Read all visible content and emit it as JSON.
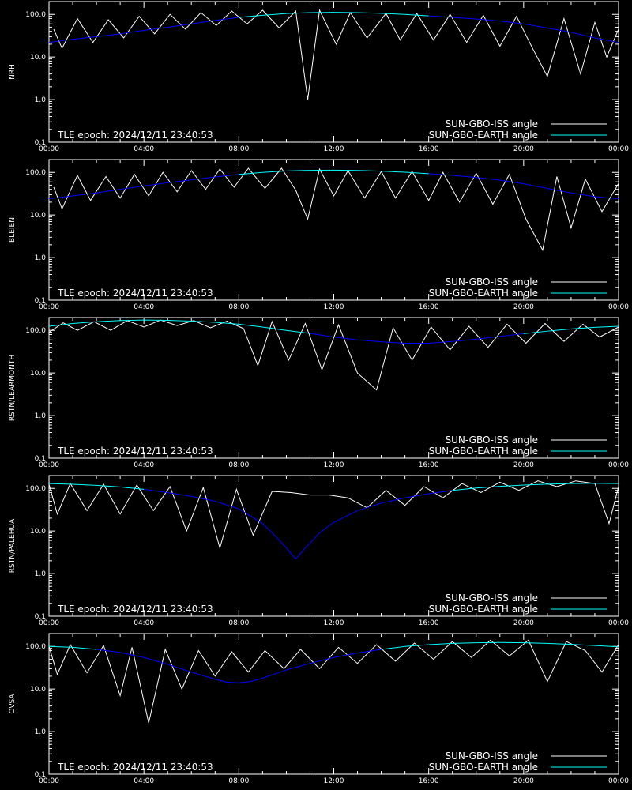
{
  "chart_data": [
    {
      "type": "line",
      "station": "NRH",
      "ylabel": "NRH",
      "epoch_label": "TLE epoch: 2024/12/11 23:40:53",
      "yscale": "log",
      "ylim": [
        0.1,
        200
      ],
      "yticks": [
        "100.0",
        "10.0",
        "1.0",
        "0.1"
      ],
      "xlim_hours": [
        0,
        24
      ],
      "xticks": [
        "00:00",
        "04:00",
        "08:00",
        "12:00",
        "16:00",
        "20:00",
        "00:00"
      ],
      "legend": "bottom-right",
      "series": [
        {
          "name": "SUN-GBO-ISS angle",
          "color": "#ffffff",
          "x_hours": [
            0.2,
            0.55,
            1.2,
            1.85,
            2.5,
            3.15,
            3.8,
            4.45,
            5.1,
            5.75,
            6.4,
            7.05,
            7.7,
            8.35,
            9.0,
            9.7,
            10.4,
            10.9,
            11.4,
            12.1,
            12.7,
            13.4,
            14.2,
            14.8,
            15.5,
            16.2,
            16.9,
            17.6,
            18.3,
            19.0,
            19.7,
            20.4,
            21.0,
            21.7,
            22.4,
            23.0,
            23.5,
            24.0
          ],
          "y": [
            45,
            16,
            80,
            22,
            75,
            28,
            90,
            35,
            100,
            45,
            110,
            55,
            120,
            60,
            125,
            48,
            120,
            1.0,
            125,
            20,
            110,
            28,
            105,
            25,
            105,
            25,
            100,
            22,
            95,
            18,
            90,
            15,
            3.5,
            80,
            4,
            65,
            10,
            45
          ]
        },
        {
          "name": "SUN-GBO-EARTH angle",
          "color": "#00ffff",
          "x_hours": [
            0,
            1,
            2,
            3,
            4,
            5,
            6,
            7,
            8,
            9,
            10,
            11,
            12,
            13,
            14,
            15,
            16,
            17,
            18,
            19,
            20,
            21,
            22,
            23,
            24
          ],
          "y": [
            22,
            26,
            30,
            35,
            42,
            50,
            60,
            72,
            85,
            95,
            105,
            110,
            112,
            110,
            106,
            100,
            92,
            85,
            78,
            70,
            60,
            48,
            38,
            28,
            22
          ],
          "low_color": "#0000ff",
          "high_color": "#00ffff"
        }
      ]
    },
    {
      "type": "line",
      "station": "BLEIEN",
      "ylabel": "BLEIEN",
      "epoch_label": "TLE epoch: 2024/12/11 23:40:53",
      "yscale": "log",
      "ylim": [
        0.1,
        200
      ],
      "yticks": [
        "100.0",
        "10.0",
        "1.0",
        "0.1"
      ],
      "xlim_hours": [
        0,
        24
      ],
      "xticks": [
        "00:00",
        "04:00",
        "08:00",
        "12:00",
        "16:00",
        "20:00",
        "00:00"
      ],
      "legend": "bottom-right",
      "series": [
        {
          "name": "SUN-GBO-ISS angle",
          "color": "#ffffff",
          "x_hours": [
            0.2,
            0.55,
            1.2,
            1.75,
            2.4,
            3.0,
            3.6,
            4.2,
            4.8,
            5.4,
            6.0,
            6.6,
            7.2,
            7.8,
            8.4,
            9.1,
            9.8,
            10.4,
            10.9,
            11.4,
            12.0,
            12.6,
            13.3,
            14.0,
            14.6,
            15.3,
            16.0,
            16.6,
            17.3,
            18.0,
            18.7,
            19.4,
            20.1,
            20.8,
            21.4,
            22.0,
            22.6,
            23.3,
            24.0
          ],
          "y": [
            45,
            14,
            85,
            22,
            80,
            25,
            90,
            28,
            100,
            35,
            110,
            40,
            120,
            45,
            125,
            42,
            125,
            38,
            8,
            120,
            28,
            110,
            25,
            105,
            25,
            105,
            22,
            100,
            20,
            95,
            18,
            90,
            8,
            1.5,
            80,
            5,
            70,
            12,
            55
          ]
        },
        {
          "name": "SUN-GBO-EARTH angle",
          "color": "#00ffff",
          "x_hours": [
            0,
            1,
            2,
            3,
            4,
            5,
            6,
            7,
            8,
            9,
            10,
            11,
            12,
            13,
            14,
            15,
            16,
            17,
            18,
            19,
            20,
            21,
            22,
            23,
            24
          ],
          "y": [
            24,
            28,
            33,
            40,
            48,
            57,
            67,
            78,
            90,
            100,
            108,
            112,
            113,
            111,
            107,
            101,
            93,
            85,
            76,
            66,
            54,
            42,
            33,
            27,
            24
          ],
          "low_color": "#0000ff",
          "high_color": "#00ffff"
        }
      ]
    },
    {
      "type": "line",
      "station": "RSTN/LEARMONTH",
      "ylabel": "RSTN/LEARMONTH",
      "epoch_label": "TLE epoch: 2024/12/11 23:40:53",
      "yscale": "log",
      "ylim": [
        0.1,
        200
      ],
      "yticks": [
        "100.0",
        "10.0",
        "1.0",
        "0.1"
      ],
      "xlim_hours": [
        0,
        24
      ],
      "xticks": [
        "00:00",
        "04:00",
        "08:00",
        "12:00",
        "16:00",
        "20:00",
        "00:00"
      ],
      "legend": "bottom-right",
      "series": [
        {
          "name": "SUN-GBO-ISS angle",
          "color": "#ffffff",
          "x_hours": [
            0,
            0.6,
            1.2,
            1.9,
            2.6,
            3.3,
            4.0,
            4.7,
            5.4,
            6.1,
            6.8,
            7.5,
            8.2,
            8.8,
            9.4,
            10.1,
            10.8,
            11.5,
            12.2,
            13.0,
            13.8,
            14.5,
            15.3,
            16.1,
            16.9,
            17.7,
            18.5,
            19.3,
            20.1,
            20.9,
            21.7,
            22.5,
            23.2,
            24.0
          ],
          "y": [
            90,
            150,
            100,
            160,
            100,
            170,
            120,
            175,
            130,
            170,
            115,
            165,
            110,
            15,
            160,
            20,
            145,
            12,
            135,
            10,
            4,
            115,
            20,
            120,
            35,
            125,
            40,
            140,
            50,
            145,
            55,
            140,
            70,
            120
          ]
        },
        {
          "name": "SUN-GBO-EARTH angle",
          "color": "#00ffff",
          "x_hours": [
            0,
            1,
            2,
            3,
            4,
            5,
            6,
            7,
            8,
            9,
            10,
            11,
            12,
            13,
            14,
            15,
            16,
            17,
            18,
            19,
            20,
            21,
            22,
            23,
            24
          ],
          "y": [
            125,
            145,
            160,
            170,
            175,
            172,
            165,
            155,
            140,
            120,
            100,
            85,
            70,
            60,
            54,
            50,
            50,
            55,
            62,
            72,
            84,
            96,
            108,
            118,
            125
          ],
          "low_color": "#0000ff",
          "high_color": "#00ffff"
        }
      ]
    },
    {
      "type": "line",
      "station": "RSTN/PALEHUA",
      "ylabel": "RSTN/PALEHUA",
      "epoch_label": "TLE epoch: 2024/12/11 23:40:53",
      "yscale": "log",
      "ylim": [
        0.1,
        200
      ],
      "yticks": [
        "100.0",
        "10.0",
        "1.0",
        "0.1"
      ],
      "xlim_hours": [
        0,
        24
      ],
      "xticks": [
        "00:00",
        "04:00",
        "08:00",
        "12:00",
        "16:00",
        "20:00",
        "00:00"
      ],
      "legend": "bottom-right",
      "series": [
        {
          "name": "SUN-GBO-ISS angle",
          "color": "#ffffff",
          "x_hours": [
            0,
            0.35,
            0.9,
            1.6,
            2.3,
            3.0,
            3.7,
            4.4,
            5.1,
            5.8,
            6.5,
            7.2,
            7.9,
            8.6,
            9.4,
            10.2,
            11.0,
            11.8,
            12.6,
            13.4,
            14.2,
            15.0,
            15.8,
            16.6,
            17.4,
            18.2,
            19.0,
            19.8,
            20.6,
            21.4,
            22.2,
            23.0,
            23.6,
            24.0
          ],
          "y": [
            125,
            25,
            130,
            30,
            125,
            25,
            120,
            30,
            110,
            10,
            105,
            4,
            95,
            8,
            85,
            80,
            70,
            70,
            60,
            35,
            90,
            40,
            110,
            60,
            130,
            80,
            140,
            90,
            150,
            110,
            150,
            130,
            15,
            110
          ]
        },
        {
          "name": "SUN-GBO-EARTH angle",
          "color": "#00ffff",
          "x_hours": [
            0,
            1,
            2,
            3,
            4,
            5,
            6,
            7,
            8,
            9,
            9.6,
            10.0,
            10.4,
            10.8,
            11.4,
            12,
            13,
            14,
            15,
            16,
            17,
            18,
            19,
            20,
            21,
            22,
            23,
            24
          ],
          "y": [
            130,
            125,
            118,
            108,
            95,
            80,
            65,
            50,
            33,
            15,
            7,
            4,
            2.2,
            4,
            9,
            16,
            30,
            45,
            60,
            75,
            90,
            102,
            112,
            120,
            126,
            130,
            132,
            130
          ],
          "low_color": "#0000ff",
          "high_color": "#00ffff"
        }
      ]
    },
    {
      "type": "line",
      "station": "OVSA",
      "ylabel": "OVSA",
      "epoch_label": "TLE epoch: 2024/12/11 23:40:53",
      "yscale": "log",
      "ylim": [
        0.1,
        200
      ],
      "yticks": [
        "100.0",
        "10.0",
        "1.0",
        "0.1"
      ],
      "xlim_hours": [
        0,
        24
      ],
      "xticks": [
        "00:00",
        "04:00",
        "08:00",
        "12:00",
        "16:00",
        "20:00",
        "00:00"
      ],
      "legend": "bottom-right",
      "series": [
        {
          "name": "SUN-GBO-ISS angle",
          "color": "#ffffff",
          "x_hours": [
            0,
            0.35,
            0.9,
            1.6,
            2.3,
            3.0,
            3.5,
            4.2,
            4.9,
            5.6,
            6.3,
            7.0,
            7.7,
            8.4,
            9.1,
            9.9,
            10.6,
            11.4,
            12.2,
            13.0,
            13.8,
            14.6,
            15.4,
            16.2,
            17.0,
            17.8,
            18.6,
            19.4,
            20.2,
            21.0,
            21.8,
            22.6,
            23.3,
            24.0
          ],
          "y": [
            100,
            22,
            110,
            24,
            105,
            7,
            95,
            1.6,
            85,
            10,
            80,
            20,
            75,
            25,
            80,
            30,
            85,
            30,
            95,
            40,
            110,
            45,
            120,
            50,
            130,
            55,
            140,
            60,
            140,
            15,
            130,
            80,
            25,
            110
          ]
        },
        {
          "name": "SUN-GBO-EARTH angle",
          "color": "#00ffff",
          "x_hours": [
            0,
            1,
            2,
            3,
            4,
            5,
            6,
            7,
            7.5,
            8,
            8.5,
            9,
            10,
            11,
            12,
            13,
            14,
            15,
            16,
            17,
            18,
            19,
            20,
            21,
            22,
            23,
            24
          ],
          "y": [
            100,
            95,
            85,
            72,
            55,
            38,
            25,
            17,
            14.5,
            14,
            15,
            18,
            28,
            40,
            55,
            70,
            85,
            100,
            110,
            118,
            122,
            124,
            122,
            118,
            112,
            105,
            98
          ],
          "low_color": "#0000ff",
          "high_color": "#00ffff"
        }
      ]
    }
  ]
}
